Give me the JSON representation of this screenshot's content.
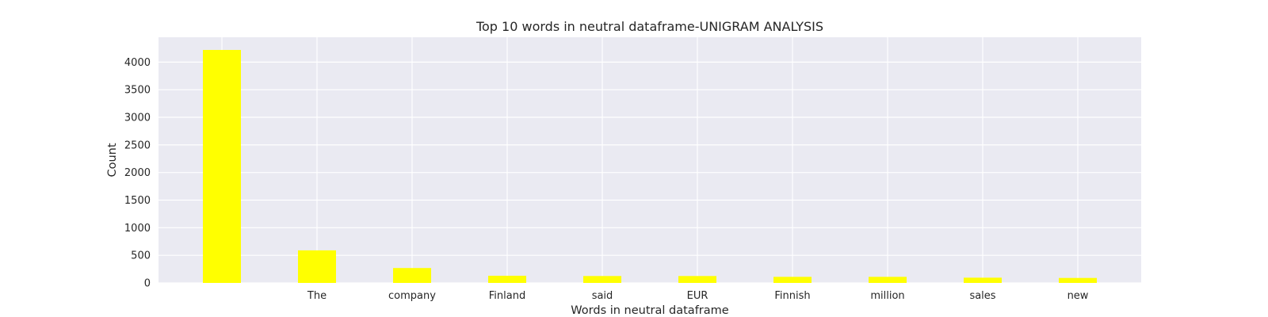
{
  "chart_data": {
    "type": "bar",
    "title": "Top 10 words in neutral dataframe-UNIGRAM ANALYSIS",
    "xlabel": "Words in neutral dataframe",
    "ylabel": "Count",
    "categories": [
      "",
      "The",
      "company",
      "Finland",
      "said",
      "EUR",
      "Finnish",
      "million",
      "sales",
      "new"
    ],
    "values": [
      4220,
      590,
      270,
      130,
      125,
      125,
      110,
      110,
      95,
      90
    ],
    "ylim": [
      0,
      4450
    ],
    "yticks": [
      0,
      500,
      1000,
      1500,
      2000,
      2500,
      3000,
      3500,
      4000
    ],
    "grid": true,
    "colors": {
      "bar": "#ffff00",
      "plot_bg": "#eaeaf2",
      "grid": "#ffffff"
    }
  }
}
